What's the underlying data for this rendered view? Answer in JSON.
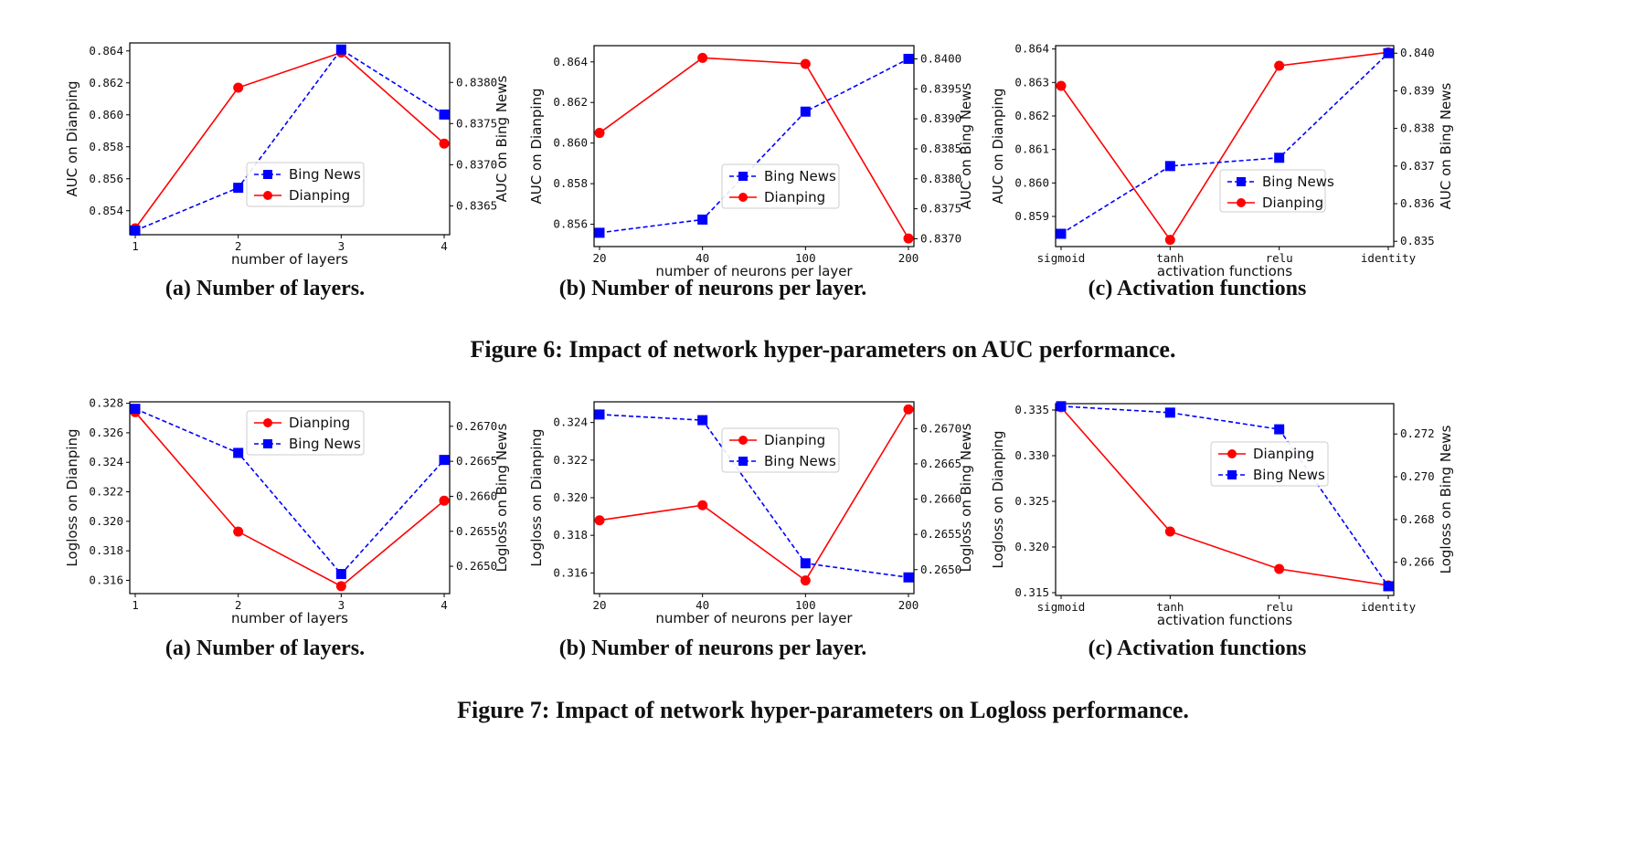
{
  "colors": {
    "dianping": "#ff0000",
    "bing_news": "#0000ff"
  },
  "figures": [
    {
      "caption": "Figure 6: Impact of network hyper-parameters on AUC performance.",
      "subcaptions": [
        "(a) Number of layers.",
        "(b) Number of neurons per layer.",
        "(c) Activation functions"
      ]
    },
    {
      "caption": "Figure 7: Impact of network hyper-parameters on Logloss performance.",
      "subcaptions": [
        "(a) Number of layers.",
        "(b) Number of neurons per layer.",
        "(c) Activation functions"
      ]
    }
  ],
  "chart_data": [
    {
      "type": "line",
      "categories": [
        "1",
        "2",
        "3",
        "4"
      ],
      "xlabel": "number of layers",
      "ylabel": "AUC on Dianping",
      "y2label": "AUC on Bing News",
      "ylim": [
        0.8525,
        0.8645
      ],
      "yticks": [
        "0.854",
        "0.856",
        "0.858",
        "0.860",
        "0.862",
        "0.864"
      ],
      "y2lim": [
        0.83615,
        0.83848
      ],
      "y2ticks": [
        "0.8365",
        "0.8370",
        "0.8375",
        "0.8380"
      ],
      "legend": "center-right",
      "legend_order": [
        "Bing News",
        "Dianping"
      ],
      "series": [
        {
          "name": "Dianping",
          "axis": "left",
          "style": "solid-circle",
          "values": [
            0.8529,
            0.8617,
            0.8639,
            0.8582
          ]
        },
        {
          "name": "Bing News",
          "axis": "right",
          "style": "dashed-square",
          "values": [
            0.8362,
            0.83672,
            0.8384,
            0.83761
          ]
        }
      ]
    },
    {
      "type": "line",
      "categories": [
        "20",
        "40",
        "100",
        "200"
      ],
      "xlabel": "number of neurons per layer",
      "ylabel": "AUC on Dianping",
      "y2label": "AUC on Bing News",
      "ylim": [
        0.8549,
        0.8648
      ],
      "yticks": [
        "0.856",
        "0.858",
        "0.860",
        "0.862",
        "0.864"
      ],
      "y2lim": [
        0.83687,
        0.84022
      ],
      "y2ticks": [
        "0.8370",
        "0.8375",
        "0.8380",
        "0.8385",
        "0.8390",
        "0.8395",
        "0.8400"
      ],
      "legend": "lower-right",
      "legend_order": [
        "Bing News",
        "Dianping"
      ],
      "series": [
        {
          "name": "Dianping",
          "axis": "left",
          "style": "solid-circle",
          "values": [
            0.8605,
            0.8642,
            0.8639,
            0.8553
          ]
        },
        {
          "name": "Bing News",
          "axis": "right",
          "style": "dashed-square",
          "values": [
            0.8371,
            0.83732,
            0.83912,
            0.84
          ]
        }
      ]
    },
    {
      "type": "line",
      "categories": [
        "sigmoid",
        "tanh",
        "relu",
        "identity"
      ],
      "xlabel": "activation functions",
      "ylabel": "AUC on Dianping",
      "y2label": "AUC on Bing News",
      "ylim": [
        0.8581,
        0.8641
      ],
      "yticks": [
        "0.859",
        "0.860",
        "0.861",
        "0.862",
        "0.863",
        "0.864"
      ],
      "y2lim": [
        0.83486,
        0.8402
      ],
      "y2ticks": [
        "0.835",
        "0.836",
        "0.837",
        "0.838",
        "0.839",
        "0.840"
      ],
      "legend": "center-right",
      "legend_order": [
        "Bing News",
        "Dianping"
      ],
      "series": [
        {
          "name": "Dianping",
          "axis": "left",
          "style": "solid-circle",
          "values": [
            0.8629,
            0.8583,
            0.8635,
            0.8639
          ]
        },
        {
          "name": "Bing News",
          "axis": "right",
          "style": "dashed-square",
          "values": [
            0.8352,
            0.837,
            0.83722,
            0.84
          ]
        }
      ]
    },
    {
      "type": "line",
      "categories": [
        "1",
        "2",
        "3",
        "4"
      ],
      "xlabel": "number of layers",
      "ylabel": "Logloss on Dianping",
      "y2label": "Logloss on Bing News",
      "ylim": [
        0.3151,
        0.3281
      ],
      "yticks": [
        "0.316",
        "0.318",
        "0.320",
        "0.322",
        "0.324",
        "0.326",
        "0.328"
      ],
      "y2lim": [
        0.26461,
        0.26735
      ],
      "y2ticks": [
        "0.2650",
        "0.2655",
        "0.2660",
        "0.2665",
        "0.2670"
      ],
      "legend": "top-right",
      "legend_order": [
        "Dianping",
        "Bing News"
      ],
      "series": [
        {
          "name": "Dianping",
          "axis": "left",
          "style": "solid-circle",
          "values": [
            0.3274,
            0.3193,
            0.3156,
            0.3214
          ]
        },
        {
          "name": "Bing News",
          "axis": "right",
          "style": "dashed-square",
          "values": [
            0.26725,
            0.26662,
            0.26489,
            0.26652
          ]
        }
      ]
    },
    {
      "type": "line",
      "categories": [
        "20",
        "40",
        "100",
        "200"
      ],
      "xlabel": "number of neurons per layer",
      "ylabel": "Logloss on Dianping",
      "y2label": "Logloss on Bing News",
      "ylim": [
        0.3149,
        0.3251
      ],
      "yticks": [
        "0.316",
        "0.318",
        "0.320",
        "0.322",
        "0.324"
      ],
      "y2lim": [
        0.26466,
        0.26738
      ],
      "y2ticks": [
        "0.2650",
        "0.2655",
        "0.2660",
        "0.2665",
        "0.2670"
      ],
      "legend": "top-right",
      "legend_order": [
        "Dianping",
        "Bing News"
      ],
      "series": [
        {
          "name": "Dianping",
          "axis": "left",
          "style": "solid-circle",
          "values": [
            0.3188,
            0.3196,
            0.3156,
            0.3247
          ]
        },
        {
          "name": "Bing News",
          "axis": "right",
          "style": "dashed-square",
          "values": [
            0.2672,
            0.26712,
            0.26509,
            0.26489
          ]
        }
      ]
    },
    {
      "type": "line",
      "categories": [
        "sigmoid",
        "tanh",
        "relu",
        "identity"
      ],
      "xlabel": "activation functions",
      "ylabel": "Logloss on Dianping",
      "y2label": "Logloss on Bing News",
      "ylim": [
        0.3147,
        0.3357
      ],
      "yticks": [
        "0.315",
        "0.320",
        "0.325",
        "0.330",
        "0.335"
      ],
      "y2lim": [
        0.26445,
        0.27342
      ],
      "y2ticks": [
        "0.266",
        "0.268",
        "0.270",
        "0.272"
      ],
      "legend": "center-right",
      "legend_order": [
        "Dianping",
        "Bing News"
      ],
      "series": [
        {
          "name": "Dianping",
          "axis": "left",
          "style": "solid-circle",
          "values": [
            0.3353,
            0.3217,
            0.3176,
            0.3158
          ]
        },
        {
          "name": "Bing News",
          "axis": "right",
          "style": "dashed-square",
          "values": [
            0.2733,
            0.273,
            0.27222,
            0.26488
          ]
        }
      ]
    }
  ]
}
